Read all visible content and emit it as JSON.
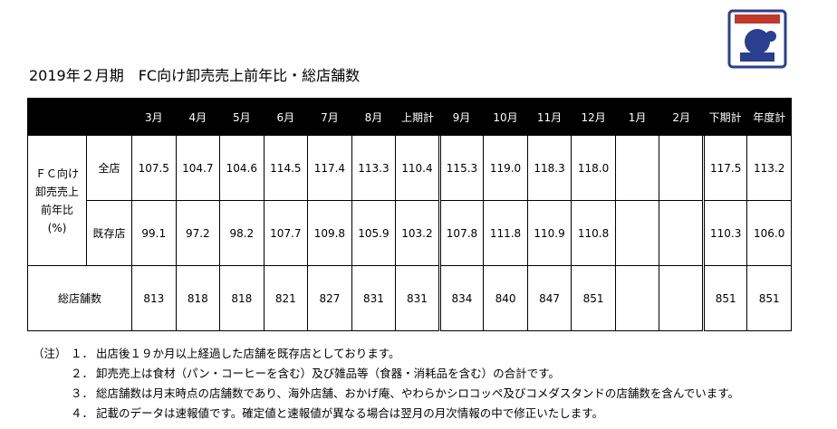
{
  "title": "2019年２月期　FC向け卸売売上前年比・総店舗数",
  "table": {
    "header": [
      "3月",
      "4月",
      "5月",
      "6月",
      "7月",
      "8月",
      "上期計",
      "9月",
      "10月",
      "11月",
      "12月",
      "1月",
      "2月",
      "下期計",
      "年度計"
    ],
    "group_label": [
      "ＦＣ向け",
      "卸売売上",
      "前年比",
      "(%)"
    ],
    "rows": [
      {
        "label": "全店",
        "values": [
          "107.5",
          "104.7",
          "104.6",
          "114.5",
          "117.4",
          "113.3",
          "110.4",
          "115.3",
          "119.0",
          "118.3",
          "118.0",
          null,
          null,
          "117.5",
          "113.2"
        ]
      },
      {
        "label": "既存店",
        "values": [
          "99.1",
          "97.2",
          "98.2",
          "107.7",
          "109.8",
          "105.9",
          "103.2",
          "107.8",
          "111.8",
          "110.9",
          "110.8",
          null,
          null,
          "110.3",
          "106.0"
        ]
      }
    ],
    "stores": {
      "label": "総店舗数",
      "values": [
        "813",
        "818",
        "818",
        "821",
        "827",
        "831",
        "831",
        "834",
        "840",
        "847",
        "851",
        null,
        null,
        "851",
        "851"
      ]
    }
  },
  "notes": {
    "label": "（注）",
    "items": [
      {
        "number": "１．",
        "text": "出店後１９か月以上経過した店舗を既存店としております。"
      },
      {
        "number": "２．",
        "text": "卸売売上は食材（パン・コーヒーを含む）及び雑品等（食器・消耗品を含む）の合計です。"
      },
      {
        "number": "３．",
        "text": "総店舗数は月末時点の店舗数であり、海外店舗、おかげ庵、やわらかシロコッペ及びコメダスタンドの店舗数を含んでいます。"
      },
      {
        "number": "４．",
        "text": "記載のデータは速報値です。確定値と速報値が異なる場合は翌月の月次情報の中で修正いたします。"
      }
    ]
  }
}
